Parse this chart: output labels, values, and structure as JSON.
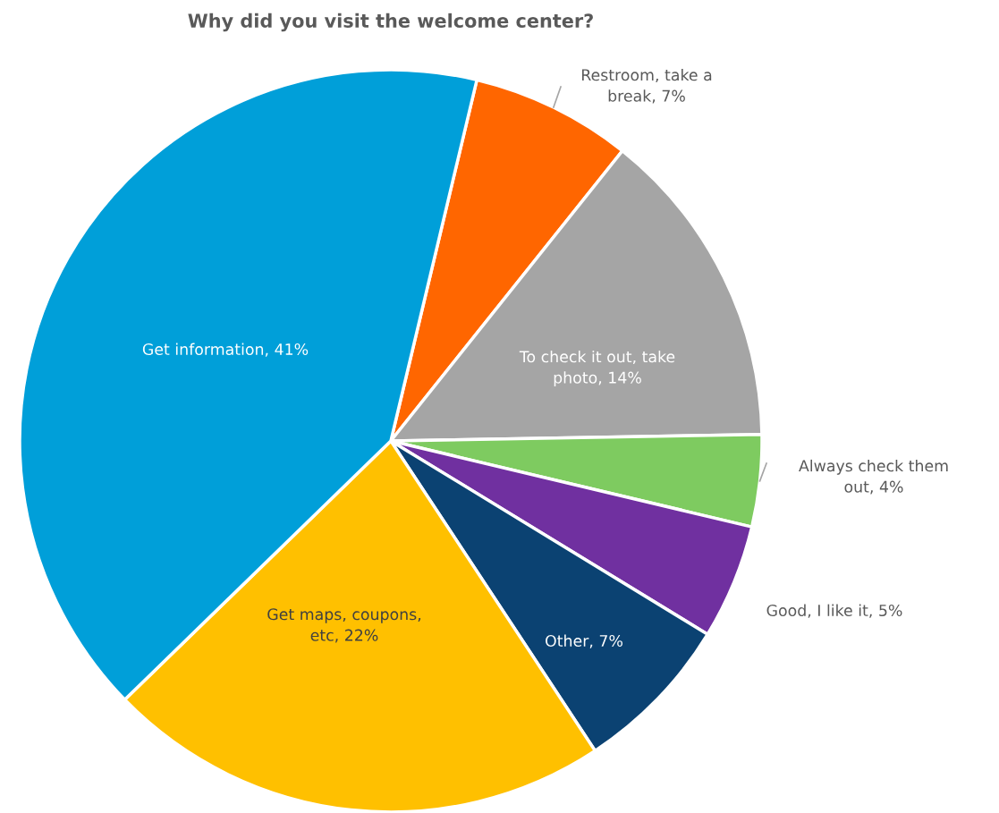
{
  "chart_data": {
    "type": "pie",
    "title": "Why did you visit the welcome center?",
    "categories": [
      "Restroom, take a break",
      "To check it out, take photo",
      "Always check them out",
      "Good, I like it",
      "Other",
      "Get maps, coupons, etc",
      "Get information"
    ],
    "values": [
      7,
      14,
      4,
      5,
      7,
      22,
      41
    ],
    "value_labels": [
      "7%",
      "14%",
      "4%",
      "5%",
      "7%",
      "22%",
      "41%"
    ],
    "colors": [
      "#ff6600",
      "#a5a5a5",
      "#7ecb60",
      "#7030a0",
      "#0b4272",
      "#ffc000",
      "#009fd9"
    ]
  }
}
